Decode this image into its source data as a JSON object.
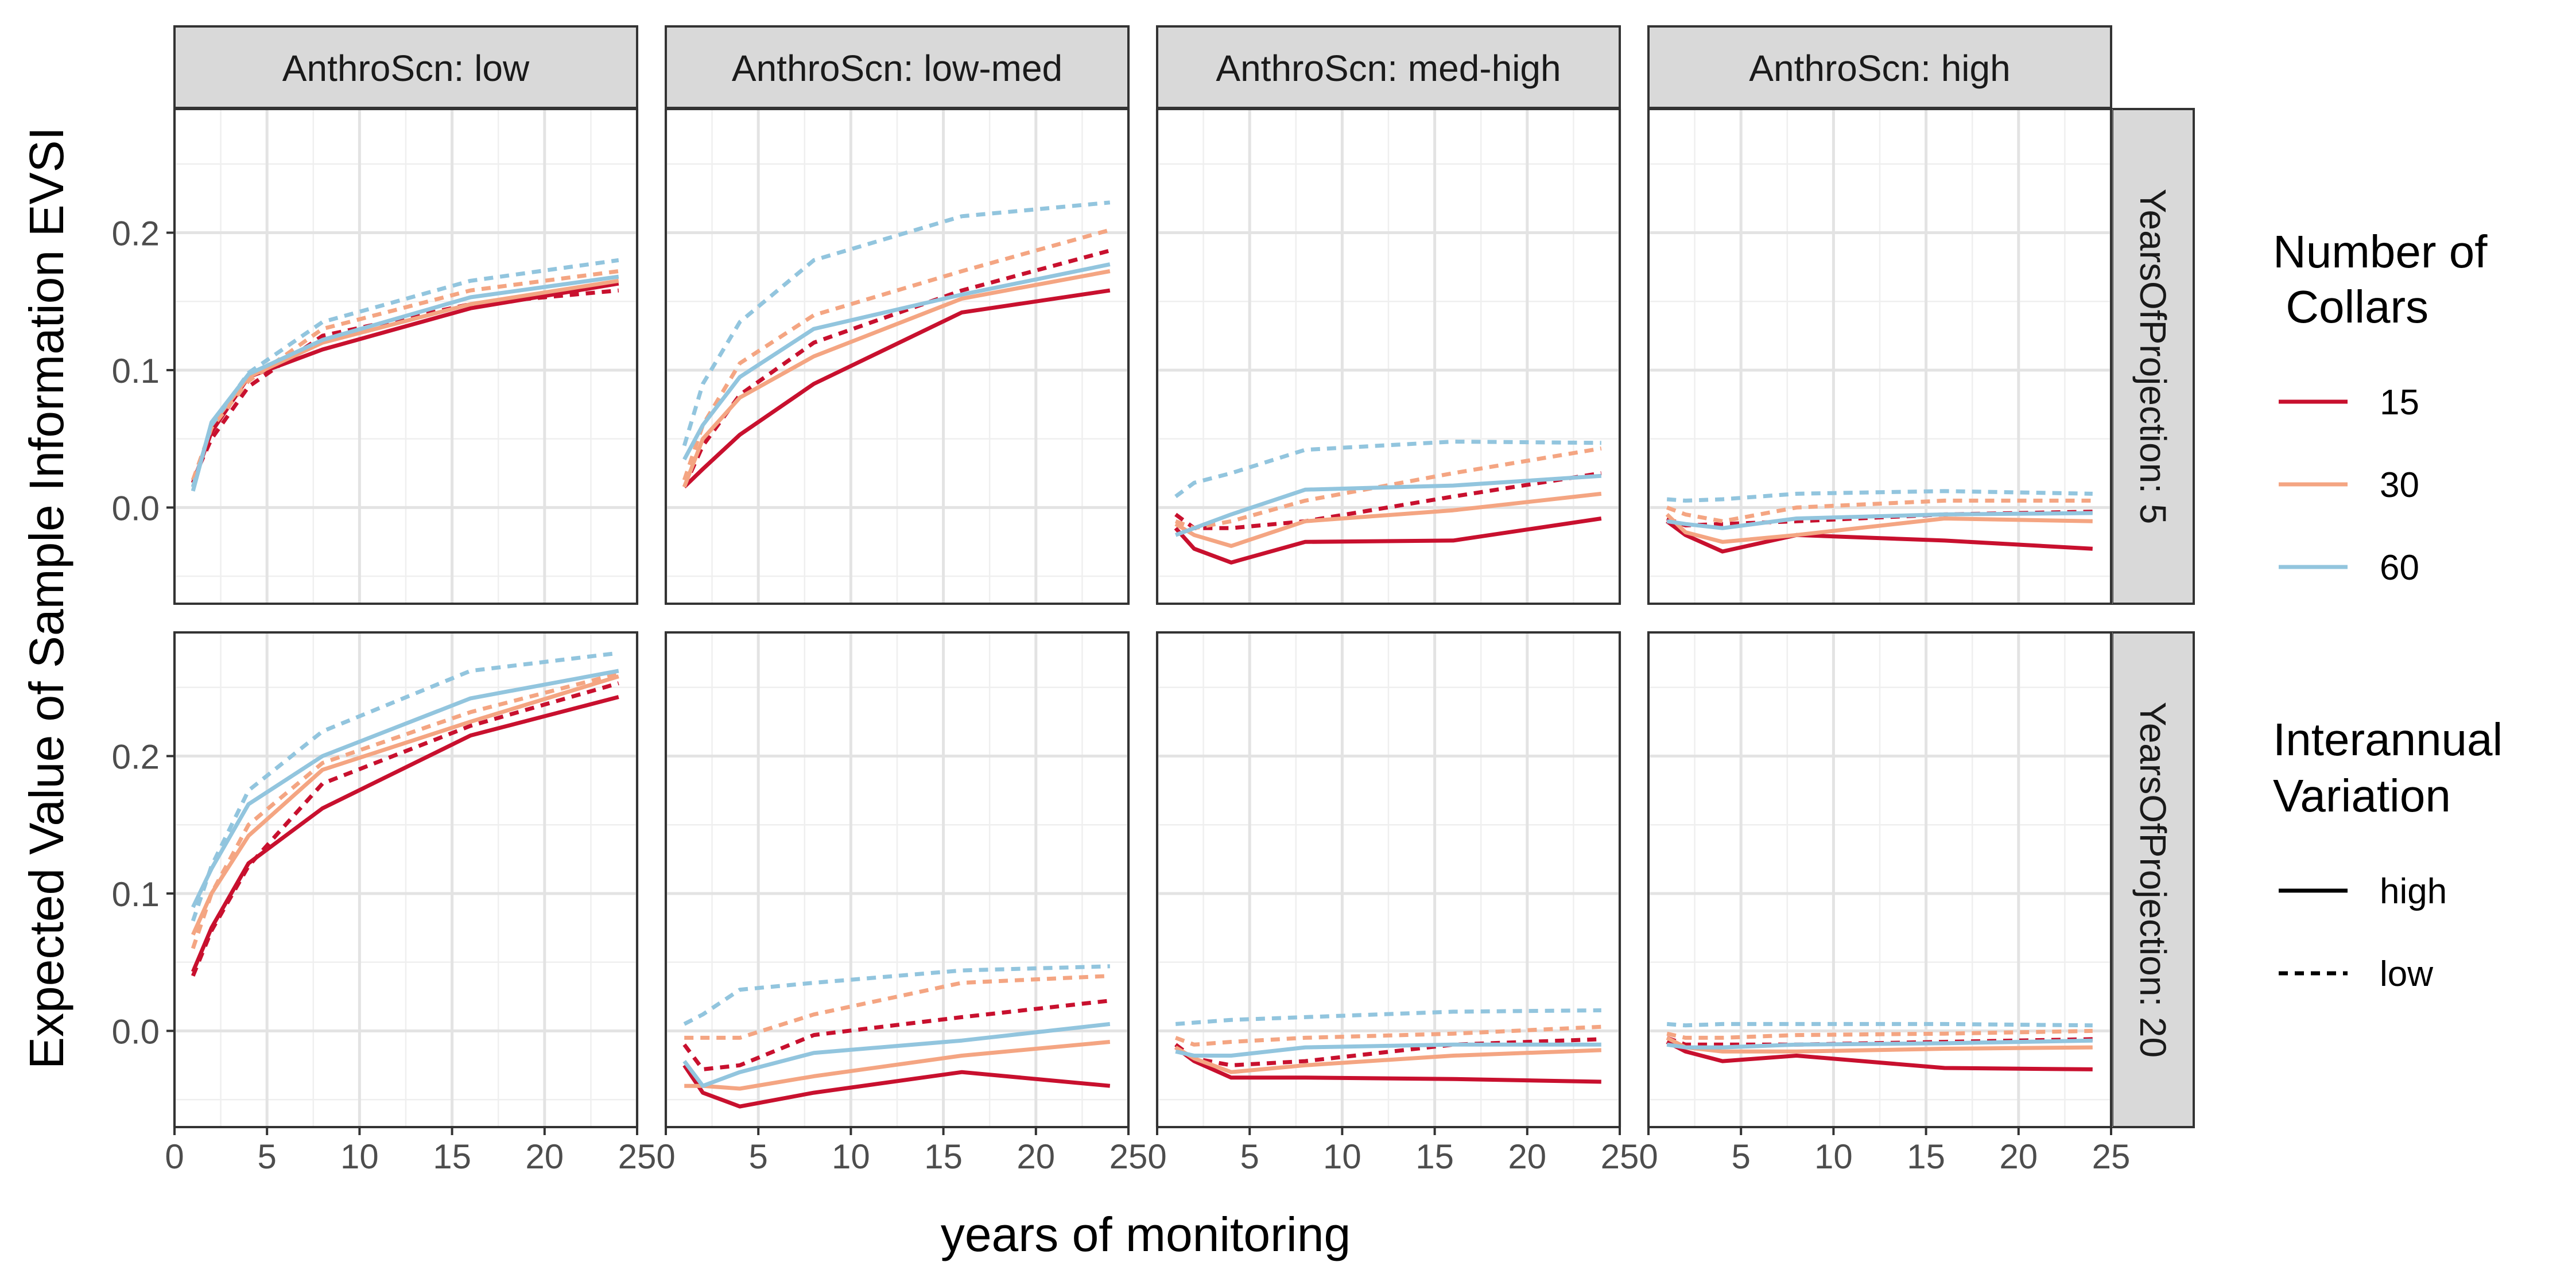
{
  "chart_data": {
    "type": "line",
    "xlabel": "years of monitoring",
    "ylabel": "Expected Value of Sample Information EVSI",
    "xlim": [
      0,
      25
    ],
    "ylim": [
      -0.07,
      0.29
    ],
    "x_ticks": [
      0,
      5,
      10,
      15,
      20,
      25
    ],
    "y_ticks": [
      0.0,
      0.1,
      0.2
    ],
    "x": [
      1,
      2,
      4,
      8,
      16,
      24
    ],
    "grid": true,
    "legend_position": "right",
    "column_facet_labels": [
      "AnthroScn: low",
      "AnthroScn: low-med",
      "AnthroScn: med-high",
      "AnthroScn: high"
    ],
    "row_facet_labels": [
      "YearsOfProjection: 5",
      "YearsOfProjection: 20"
    ],
    "legend": {
      "color_title": [
        "Number of",
        " Collars"
      ],
      "color_entries": [
        {
          "label": "15",
          "color": "#c8102e"
        },
        {
          "label": "30",
          "color": "#f4a582"
        },
        {
          "label": "60",
          "color": "#92c5de"
        }
      ],
      "linetype_title": [
        "Interannual",
        "Variation"
      ],
      "linetype_entries": [
        {
          "label": "high",
          "dash": "solid"
        },
        {
          "label": "low",
          "dash": "dashed"
        }
      ]
    },
    "panels": [
      {
        "row": 0,
        "col": 0,
        "series": [
          {
            "collars": "15",
            "variation": "high",
            "values": [
              0.018,
              0.055,
              0.095,
              0.115,
              0.145,
              0.163
            ]
          },
          {
            "collars": "15",
            "variation": "low",
            "values": [
              0.02,
              0.05,
              0.088,
              0.125,
              0.148,
              0.158
            ]
          },
          {
            "collars": "30",
            "variation": "high",
            "values": [
              0.015,
              0.06,
              0.095,
              0.12,
              0.148,
              0.165
            ]
          },
          {
            "collars": "30",
            "variation": "low",
            "values": [
              0.02,
              0.058,
              0.092,
              0.13,
              0.158,
              0.172
            ]
          },
          {
            "collars": "60",
            "variation": "high",
            "values": [
              0.012,
              0.062,
              0.097,
              0.122,
              0.153,
              0.168
            ]
          },
          {
            "collars": "60",
            "variation": "low",
            "values": [
              0.015,
              0.06,
              0.098,
              0.135,
              0.165,
              0.18
            ]
          }
        ]
      },
      {
        "row": 0,
        "col": 1,
        "series": [
          {
            "collars": "15",
            "variation": "high",
            "values": [
              0.015,
              0.028,
              0.053,
              0.09,
              0.142,
              0.158
            ]
          },
          {
            "collars": "15",
            "variation": "low",
            "values": [
              0.015,
              0.045,
              0.082,
              0.12,
              0.158,
              0.187
            ]
          },
          {
            "collars": "30",
            "variation": "high",
            "values": [
              0.015,
              0.05,
              0.08,
              0.11,
              0.152,
              0.172
            ]
          },
          {
            "collars": "30",
            "variation": "low",
            "values": [
              0.02,
              0.06,
              0.105,
              0.14,
              0.172,
              0.202
            ]
          },
          {
            "collars": "60",
            "variation": "high",
            "values": [
              0.035,
              0.06,
              0.095,
              0.13,
              0.155,
              0.177
            ]
          },
          {
            "collars": "60",
            "variation": "low",
            "values": [
              0.045,
              0.09,
              0.135,
              0.18,
              0.212,
              0.222
            ]
          }
        ]
      },
      {
        "row": 0,
        "col": 2,
        "series": [
          {
            "collars": "15",
            "variation": "high",
            "values": [
              -0.015,
              -0.03,
              -0.04,
              -0.025,
              -0.024,
              -0.008
            ]
          },
          {
            "collars": "15",
            "variation": "low",
            "values": [
              -0.005,
              -0.015,
              -0.015,
              -0.01,
              0.008,
              0.025
            ]
          },
          {
            "collars": "30",
            "variation": "high",
            "values": [
              -0.012,
              -0.02,
              -0.028,
              -0.01,
              -0.002,
              0.01
            ]
          },
          {
            "collars": "30",
            "variation": "low",
            "values": [
              -0.01,
              -0.015,
              -0.01,
              0.005,
              0.025,
              0.043
            ]
          },
          {
            "collars": "60",
            "variation": "high",
            "values": [
              -0.02,
              -0.015,
              -0.005,
              0.013,
              0.016,
              0.023
            ]
          },
          {
            "collars": "60",
            "variation": "low",
            "values": [
              0.008,
              0.018,
              0.025,
              0.042,
              0.048,
              0.047
            ]
          }
        ]
      },
      {
        "row": 0,
        "col": 3,
        "series": [
          {
            "collars": "15",
            "variation": "high",
            "values": [
              -0.01,
              -0.02,
              -0.032,
              -0.02,
              -0.024,
              -0.03
            ]
          },
          {
            "collars": "15",
            "variation": "low",
            "values": [
              -0.008,
              -0.013,
              -0.012,
              -0.01,
              -0.005,
              -0.003
            ]
          },
          {
            "collars": "30",
            "variation": "high",
            "values": [
              -0.005,
              -0.018,
              -0.025,
              -0.02,
              -0.008,
              -0.01
            ]
          },
          {
            "collars": "30",
            "variation": "low",
            "values": [
              0.0,
              -0.005,
              -0.01,
              0.0,
              0.005,
              0.005
            ]
          },
          {
            "collars": "60",
            "variation": "high",
            "values": [
              -0.01,
              -0.012,
              -0.015,
              -0.008,
              -0.005,
              -0.004
            ]
          },
          {
            "collars": "60",
            "variation": "low",
            "values": [
              0.006,
              0.005,
              0.006,
              0.01,
              0.012,
              0.01
            ]
          }
        ]
      },
      {
        "row": 1,
        "col": 0,
        "series": [
          {
            "collars": "15",
            "variation": "high",
            "values": [
              0.043,
              0.075,
              0.122,
              0.162,
              0.215,
              0.243
            ]
          },
          {
            "collars": "15",
            "variation": "low",
            "values": [
              0.04,
              0.073,
              0.12,
              0.18,
              0.222,
              0.253
            ]
          },
          {
            "collars": "30",
            "variation": "high",
            "values": [
              0.07,
              0.1,
              0.142,
              0.19,
              0.225,
              0.258
            ]
          },
          {
            "collars": "30",
            "variation": "low",
            "values": [
              0.06,
              0.1,
              0.15,
              0.195,
              0.232,
              0.26
            ]
          },
          {
            "collars": "60",
            "variation": "high",
            "values": [
              0.09,
              0.118,
              0.165,
              0.2,
              0.242,
              0.262
            ]
          },
          {
            "collars": "60",
            "variation": "low",
            "values": [
              0.08,
              0.12,
              0.175,
              0.218,
              0.262,
              0.275
            ]
          }
        ]
      },
      {
        "row": 1,
        "col": 1,
        "series": [
          {
            "collars": "15",
            "variation": "high",
            "values": [
              -0.025,
              -0.045,
              -0.055,
              -0.045,
              -0.03,
              -0.04
            ]
          },
          {
            "collars": "15",
            "variation": "low",
            "values": [
              -0.01,
              -0.028,
              -0.025,
              -0.003,
              0.01,
              0.022
            ]
          },
          {
            "collars": "30",
            "variation": "high",
            "values": [
              -0.04,
              -0.04,
              -0.042,
              -0.033,
              -0.018,
              -0.008
            ]
          },
          {
            "collars": "30",
            "variation": "low",
            "values": [
              -0.005,
              -0.005,
              -0.005,
              0.012,
              0.035,
              0.04
            ]
          },
          {
            "collars": "60",
            "variation": "high",
            "values": [
              -0.022,
              -0.04,
              -0.03,
              -0.016,
              -0.007,
              0.005
            ]
          },
          {
            "collars": "60",
            "variation": "low",
            "values": [
              0.005,
              0.012,
              0.03,
              0.035,
              0.044,
              0.047
            ]
          }
        ]
      },
      {
        "row": 1,
        "col": 2,
        "series": [
          {
            "collars": "15",
            "variation": "high",
            "values": [
              -0.012,
              -0.022,
              -0.034,
              -0.034,
              -0.035,
              -0.037
            ]
          },
          {
            "collars": "15",
            "variation": "low",
            "values": [
              -0.01,
              -0.02,
              -0.025,
              -0.022,
              -0.01,
              -0.006
            ]
          },
          {
            "collars": "30",
            "variation": "high",
            "values": [
              -0.012,
              -0.02,
              -0.03,
              -0.025,
              -0.018,
              -0.014
            ]
          },
          {
            "collars": "30",
            "variation": "low",
            "values": [
              -0.005,
              -0.01,
              -0.008,
              -0.005,
              -0.002,
              0.003
            ]
          },
          {
            "collars": "60",
            "variation": "high",
            "values": [
              -0.015,
              -0.018,
              -0.018,
              -0.012,
              -0.01,
              -0.01
            ]
          },
          {
            "collars": "60",
            "variation": "low",
            "values": [
              0.005,
              0.006,
              0.008,
              0.01,
              0.014,
              0.015
            ]
          }
        ]
      },
      {
        "row": 1,
        "col": 3,
        "series": [
          {
            "collars": "15",
            "variation": "high",
            "values": [
              -0.008,
              -0.015,
              -0.022,
              -0.018,
              -0.027,
              -0.028
            ]
          },
          {
            "collars": "15",
            "variation": "low",
            "values": [
              -0.005,
              -0.01,
              -0.01,
              -0.01,
              -0.008,
              -0.006
            ]
          },
          {
            "collars": "30",
            "variation": "high",
            "values": [
              -0.005,
              -0.012,
              -0.015,
              -0.015,
              -0.013,
              -0.012
            ]
          },
          {
            "collars": "30",
            "variation": "low",
            "values": [
              -0.002,
              -0.005,
              -0.005,
              -0.003,
              -0.002,
              0.0
            ]
          },
          {
            "collars": "60",
            "variation": "high",
            "values": [
              -0.01,
              -0.012,
              -0.012,
              -0.01,
              -0.009,
              -0.007
            ]
          },
          {
            "collars": "60",
            "variation": "low",
            "values": [
              0.005,
              0.004,
              0.005,
              0.005,
              0.005,
              0.004
            ]
          }
        ]
      }
    ]
  }
}
